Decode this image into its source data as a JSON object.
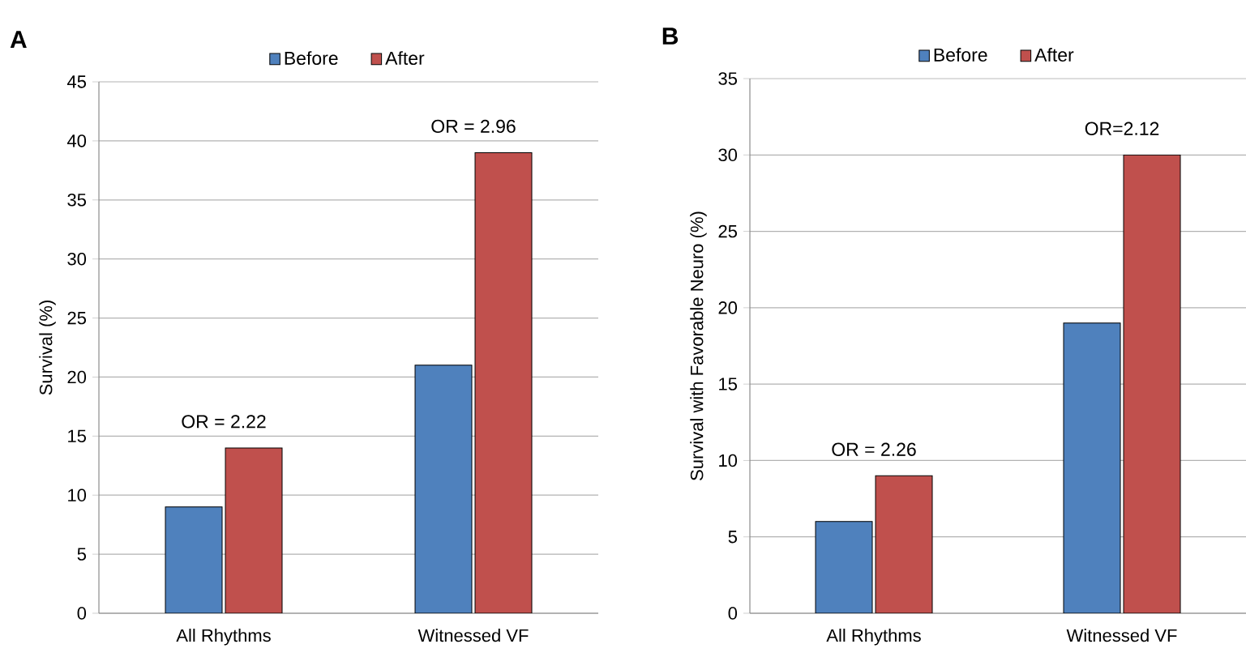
{
  "chart_data": [
    {
      "type": "bar",
      "title": "A",
      "ylabel": "Survival (%)",
      "categories": [
        "All Rhythms",
        "Witnessed VF"
      ],
      "series": [
        {
          "name": "Before",
          "color": "#4f81bd",
          "values": [
            9,
            21
          ]
        },
        {
          "name": "After",
          "color": "#c0504d",
          "values": [
            14,
            39
          ]
        }
      ],
      "ylim": [
        0,
        45
      ],
      "yticks": [
        0,
        5,
        10,
        15,
        20,
        25,
        30,
        35,
        40,
        45
      ],
      "grid": "y",
      "legend": "top",
      "annotations": [
        {
          "text": "OR = 2.22",
          "x": "All Rhythms",
          "y": 14
        },
        {
          "text": "OR = 2.96",
          "x": "Witnessed VF",
          "y": 39
        }
      ]
    },
    {
      "type": "bar",
      "title": "B",
      "ylabel": "Survival with Favorable Neuro (%)",
      "categories": [
        "All Rhythms",
        "Witnessed VF"
      ],
      "series": [
        {
          "name": "Before",
          "color": "#4f81bd",
          "values": [
            6,
            19
          ]
        },
        {
          "name": "After",
          "color": "#c0504d",
          "values": [
            9,
            30
          ]
        }
      ],
      "ylim": [
        0,
        35
      ],
      "yticks": [
        0,
        5,
        10,
        15,
        20,
        25,
        30,
        35
      ],
      "grid": "y",
      "legend": "top",
      "annotations": [
        {
          "text": "OR = 2.26",
          "x": "All Rhythms",
          "y": 9
        },
        {
          "text": "OR=2.12",
          "x": "Witnessed VF",
          "y": 30
        }
      ]
    }
  ]
}
